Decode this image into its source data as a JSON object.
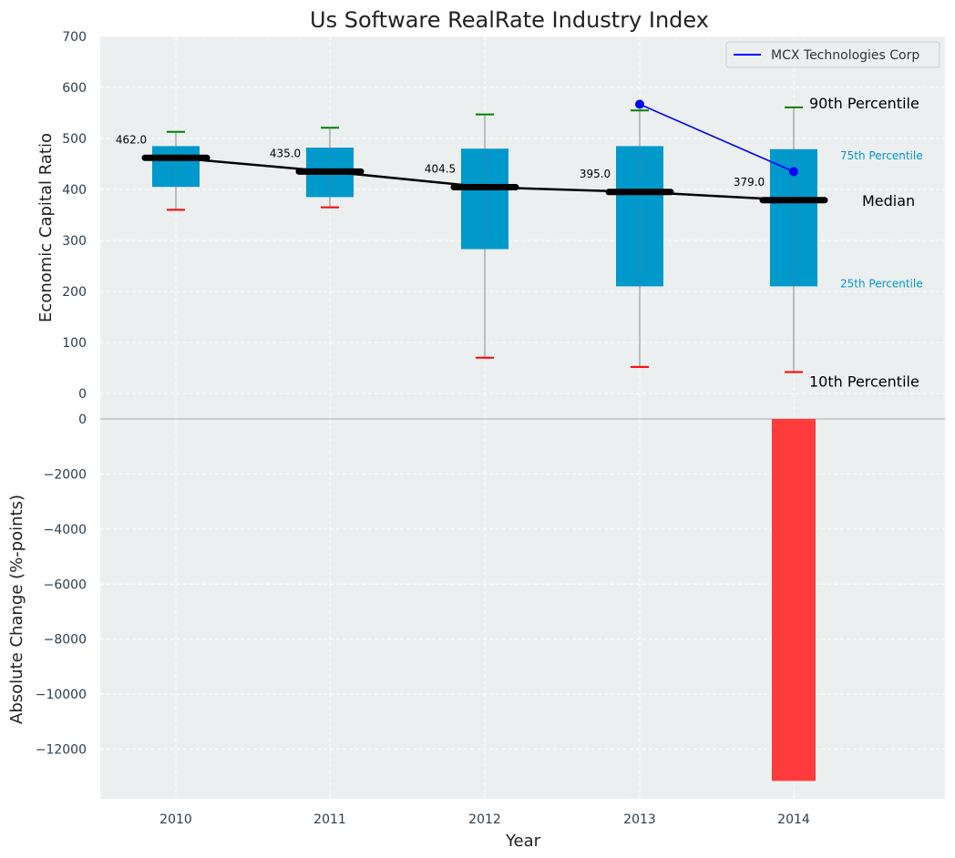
{
  "chart_data": {
    "title": "Us Software RealRate Industry Index",
    "xlabel": "Year",
    "colors": {
      "plot_bg": "#ECEFF0",
      "box": "#0099CC",
      "median": "#000000",
      "whisker_high": "#008000",
      "whisker_low": "#FF0000",
      "company": "#0000FF",
      "bar": "#FF3B3B",
      "percentile_small": "#0099CC"
    },
    "top": {
      "type": "box",
      "ylabel": "Economic Capital Ratio",
      "ylim": [
        0,
        700
      ],
      "yticks": [
        0,
        100,
        200,
        300,
        400,
        500,
        600,
        700
      ],
      "grid": true,
      "legend_position": "top-right",
      "categories": [
        "2010",
        "2011",
        "2012",
        "2013",
        "2014"
      ],
      "p10": [
        360,
        365,
        70,
        52,
        42
      ],
      "p25": [
        405,
        385,
        283,
        210,
        210
      ],
      "median": [
        462.0,
        435.0,
        404.5,
        395.0,
        379.0
      ],
      "median_labels": [
        "462.0",
        "435.0",
        "404.5",
        "395.0",
        "379.0"
      ],
      "p75": [
        485,
        482,
        480,
        485,
        479
      ],
      "p90": [
        513,
        521,
        547,
        555,
        561
      ],
      "company": {
        "name": "MCX Technologies Corp",
        "x": [
          "2013",
          "2014"
        ],
        "values": [
          567,
          435
        ]
      },
      "annotations": {
        "p90": "90th Percentile",
        "p75": "75th Percentile",
        "median": "Median",
        "p25": "25th Percentile",
        "p10": "10th Percentile"
      }
    },
    "bottom": {
      "type": "bar",
      "ylabel": "Absolute Change (%-points)",
      "ylim": [
        -13800,
        0
      ],
      "yticks": [
        0,
        -2000,
        -4000,
        -6000,
        -8000,
        -10000,
        -12000
      ],
      "grid": true,
      "categories": [
        "2010",
        "2011",
        "2012",
        "2013",
        "2014"
      ],
      "values": [
        0,
        0,
        0,
        0,
        -13150
      ]
    }
  }
}
